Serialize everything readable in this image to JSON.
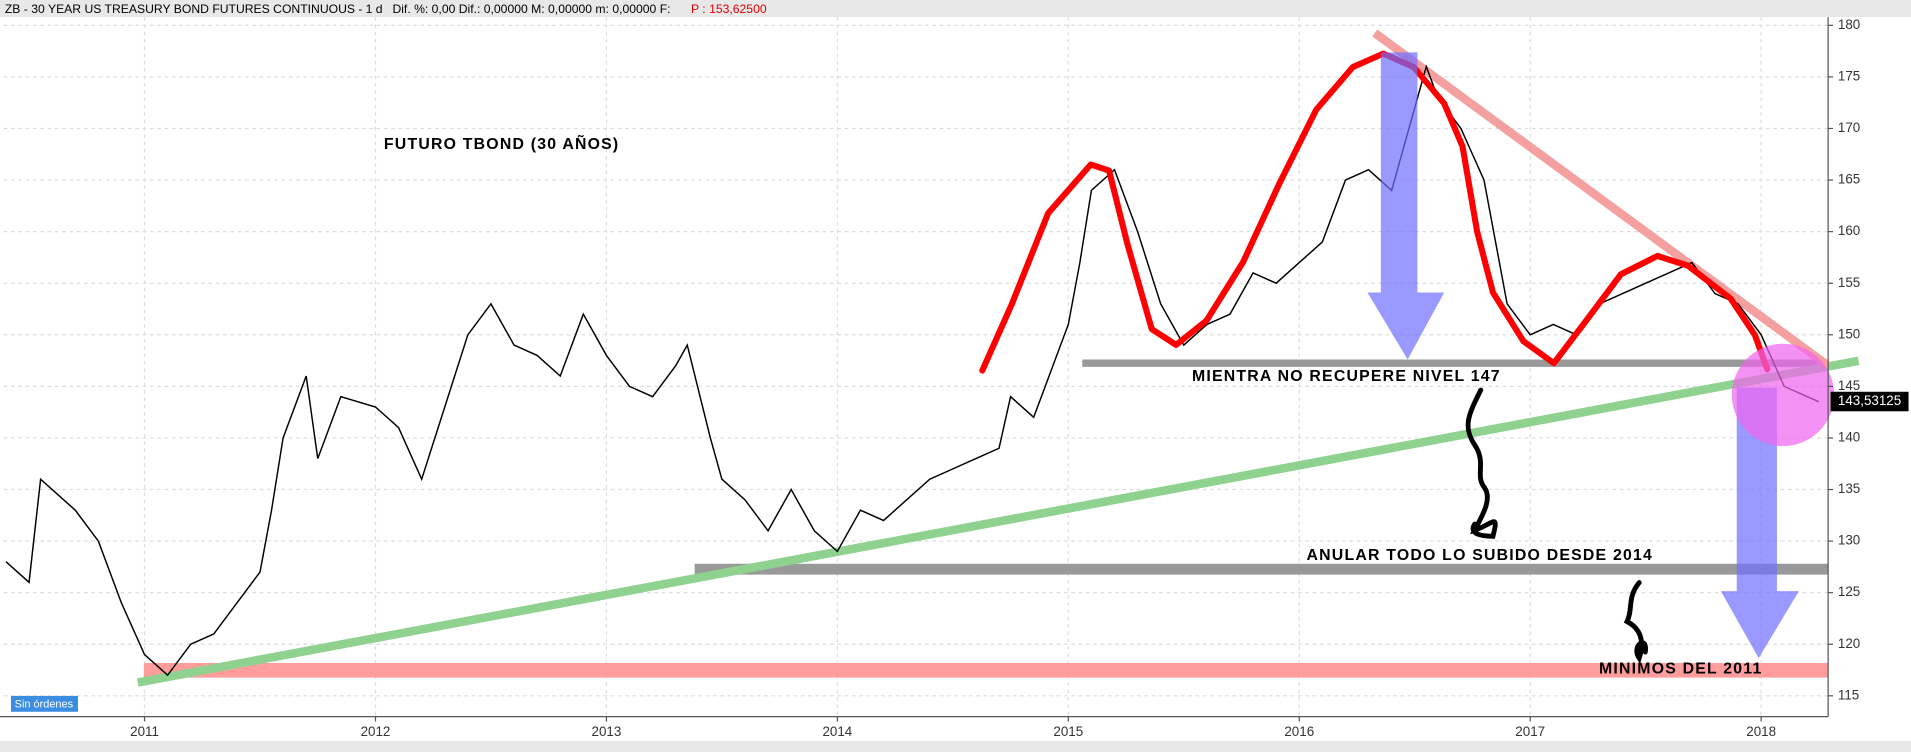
{
  "chart_data": {
    "type": "line",
    "title": "ZB - 30 YEAR US TREASURY BOND FUTURES CONTINUOUS -",
    "interval": "1 d",
    "stats": "Dif. %: 0,00  Dif.: 0,00000  M: 0,00000  m: 0,00000  F:",
    "price_label": "P : 153,62500",
    "order_status": "Sin órdenes",
    "annotations": [
      "FUTURO TBOND (30 AÑOS)",
      "MIENTRA NO RECUPERE NIVEL 147",
      "ANULAR TODO LO SUBIDO DESDE 2014",
      "MINIMOS DEL 2011"
    ],
    "last_price": {
      "value": 143.53125,
      "label": "143,53125"
    },
    "color": "#000000",
    "x": [
      2010.4,
      2010.5,
      2010.55,
      2010.6,
      2010.7,
      2010.8,
      2010.9,
      2011.0,
      2011.1,
      2011.2,
      2011.3,
      2011.4,
      2011.5,
      2011.55,
      2011.6,
      2011.7,
      2011.75,
      2011.85,
      2012.0,
      2012.1,
      2012.2,
      2012.3,
      2012.4,
      2012.5,
      2012.6,
      2012.7,
      2012.8,
      2012.9,
      2013.0,
      2013.1,
      2013.2,
      2013.3,
      2013.35,
      2013.45,
      2013.5,
      2013.6,
      2013.7,
      2013.8,
      2013.9,
      2014.0,
      2014.1,
      2014.2,
      2014.3,
      2014.4,
      2014.5,
      2014.6,
      2014.7,
      2014.75,
      2014.85,
      2014.95,
      2015.0,
      2015.05,
      2015.1,
      2015.2,
      2015.3,
      2015.4,
      2015.5,
      2015.6,
      2015.7,
      2015.8,
      2015.9,
      2016.0,
      2016.1,
      2016.2,
      2016.3,
      2016.4,
      2016.5,
      2016.55,
      2016.6,
      2016.7,
      2016.8,
      2016.9,
      2017.0,
      2017.1,
      2017.2,
      2017.3,
      2017.4,
      2017.5,
      2017.6,
      2017.7,
      2017.8,
      2017.9,
      2018.0,
      2018.1,
      2018.2,
      2018.25
    ],
    "values": [
      128,
      126,
      136,
      135,
      133,
      130,
      124,
      119,
      117,
      120,
      121,
      124,
      127,
      133,
      140,
      146,
      138,
      144,
      143,
      141,
      136,
      143,
      150,
      153,
      149,
      148,
      146,
      152,
      148,
      145,
      144,
      147,
      149,
      140,
      136,
      134,
      131,
      135,
      131,
      129,
      133,
      132,
      134,
      136,
      137,
      138,
      139,
      144,
      142,
      148,
      151,
      157,
      164,
      166,
      160,
      153,
      149,
      151,
      152,
      156,
      155,
      157,
      159,
      165,
      166,
      164,
      172,
      176,
      173,
      170,
      165,
      153,
      150,
      151,
      150,
      153,
      154,
      155,
      156,
      157,
      154,
      153,
      150,
      145,
      144,
      143.5
    ],
    "xlim": [
      2010.39,
      2018.29
    ],
    "ylim": [
      113.1,
      180.8
    ],
    "xticks": [
      2011,
      2012,
      2013,
      2014,
      2015,
      2016,
      2017,
      2018
    ],
    "yticks": [
      115,
      120,
      125,
      130,
      135,
      140,
      145,
      150,
      155,
      160,
      165,
      170,
      175,
      180
    ],
    "grid": true
  }
}
